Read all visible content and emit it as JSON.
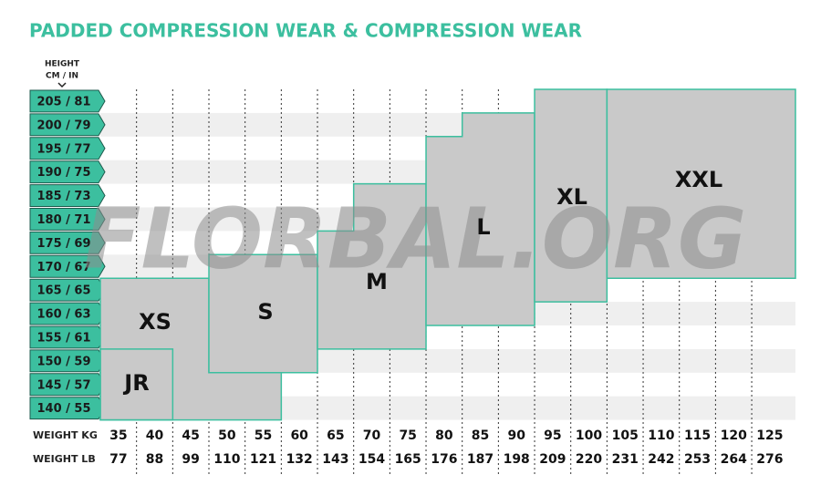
{
  "title": "PADDED COMPRESSION WEAR & COMPRESSION WEAR",
  "height_header": [
    "HEIGHT",
    "CM / IN"
  ],
  "heights": [
    "205 / 81",
    "200 / 79",
    "195 / 77",
    "190 / 75",
    "185 / 73",
    "180 / 71",
    "175 / 69",
    "170 / 67",
    "165 / 65",
    "160 / 63",
    "155 / 61",
    "150 / 59",
    "145 / 57",
    "140 / 55"
  ],
  "weight_kg": {
    "label": "WEIGHT KG",
    "values": [
      35,
      40,
      45,
      50,
      55,
      60,
      65,
      70,
      75,
      80,
      85,
      90,
      95,
      100,
      105,
      110,
      115,
      120,
      125
    ]
  },
  "weight_lb": {
    "label": "WEIGHT LB",
    "values": [
      77,
      88,
      99,
      110,
      121,
      132,
      143,
      154,
      165,
      176,
      187,
      198,
      209,
      220,
      231,
      242,
      253,
      264,
      276
    ]
  },
  "sizes": [
    "XS",
    "JR",
    "S",
    "M",
    "L",
    "XL",
    "XXL"
  ],
  "watermark": "FLORBAL.ORG"
}
